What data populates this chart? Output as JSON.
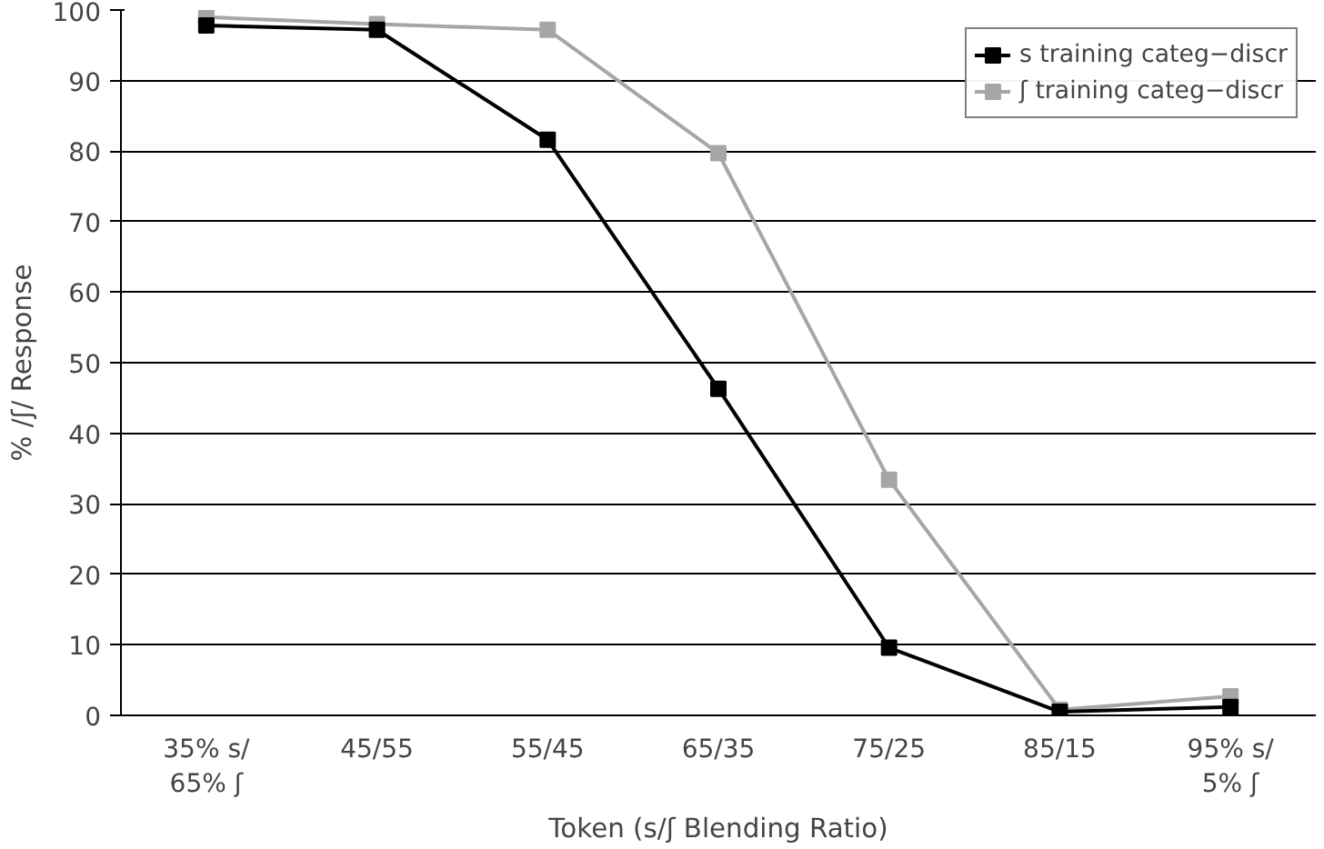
{
  "chart_data": {
    "type": "line",
    "xlabel": "Token (s/ʃ Blending Ratio)",
    "ylabel": "% /ʃ/ Response",
    "categories": [
      "35% s/\n65% ʃ",
      "45/55",
      "55/45",
      "65/35",
      "75/25",
      "85/15",
      "95% s/\n5% ʃ"
    ],
    "series": [
      {
        "name": "s training categ−discr",
        "color": "#000000",
        "values": [
          97.8,
          97.2,
          81.6,
          46.3,
          9.6,
          0.5,
          1.2
        ]
      },
      {
        "name": "ʃ training categ−discr",
        "color": "#a6a6a6",
        "values": [
          99.0,
          98.0,
          97.2,
          79.7,
          33.4,
          0.8,
          2.7
        ]
      }
    ],
    "ylim": [
      0,
      100
    ],
    "yticks": [
      0,
      10,
      20,
      30,
      40,
      50,
      60,
      70,
      80,
      90,
      100
    ],
    "grid": "y",
    "legend": "top right",
    "marker": "square",
    "line_style": "solid"
  }
}
